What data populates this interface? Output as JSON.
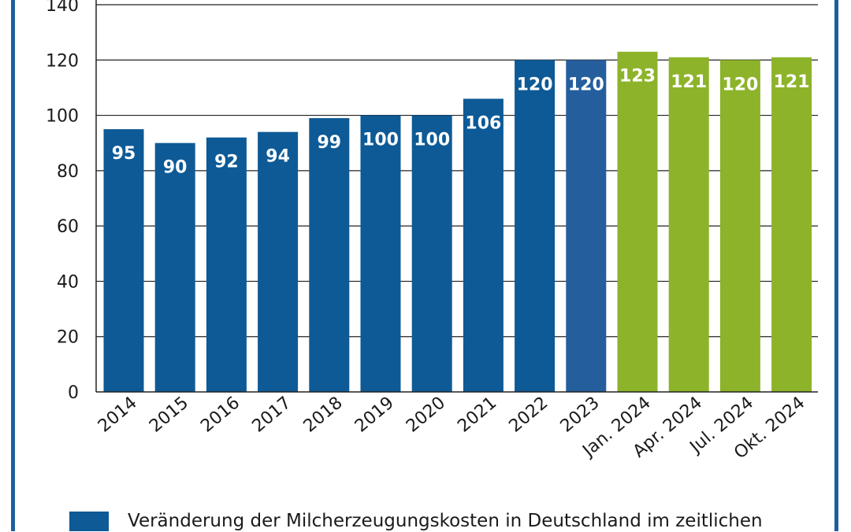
{
  "chart_data": {
    "type": "bar",
    "categories": [
      "2014",
      "2015",
      "2016",
      "2017",
      "2018",
      "2019",
      "2020",
      "2021",
      "2022",
      "2023",
      "Jan. 2024",
      "Apr. 2024",
      "Jul. 2024",
      "Okt. 2024"
    ],
    "values": [
      95,
      90,
      92,
      94,
      99,
      100,
      100,
      106,
      120,
      120,
      123,
      121,
      120,
      121
    ],
    "data_labels": [
      "95",
      "90",
      "92",
      "94",
      "99",
      "100",
      "100",
      "106",
      "120",
      "120",
      "123",
      "121",
      "120",
      "121"
    ],
    "bar_colors": [
      "#0d5a96",
      "#0d5a96",
      "#0d5a96",
      "#0d5a96",
      "#0d5a96",
      "#0d5a96",
      "#0d5a96",
      "#0d5a96",
      "#0d5a96",
      "#255e9c",
      "#8db32a",
      "#8db32a",
      "#8db32a",
      "#8db32a"
    ],
    "y_ticks": [
      0,
      20,
      40,
      60,
      80,
      100,
      120,
      140
    ],
    "ylim": [
      0,
      140
    ],
    "grid": true,
    "title": "",
    "xlabel": "",
    "ylabel": ""
  },
  "legend": {
    "label": "Veränderung der Milcherzeugungskosten in Deutschland im zeitlichen",
    "color": "#0d5a96"
  },
  "colors": {
    "frame": "#1d5f9c",
    "grid": "#222222"
  }
}
